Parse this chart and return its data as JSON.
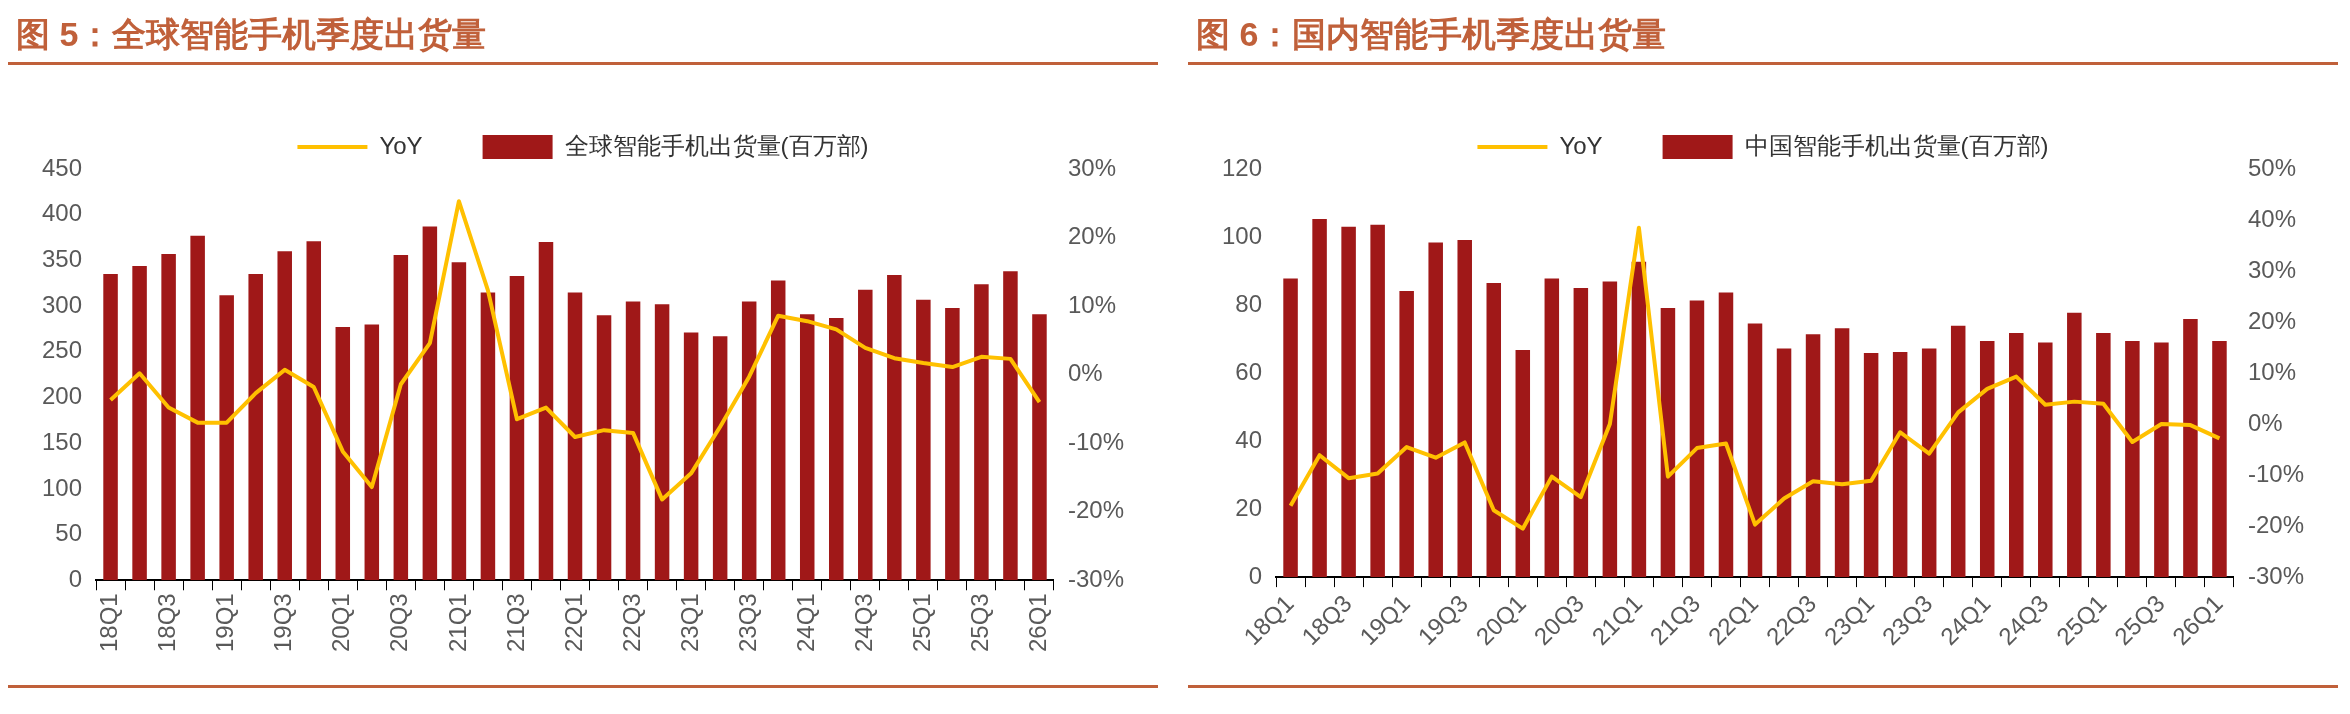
{
  "chart_data": [
    {
      "type": "bar",
      "title": "图 5：全球智能手机季度出货量",
      "categories": [
        "18Q1",
        null,
        "18Q3",
        null,
        "19Q1",
        null,
        "19Q3",
        null,
        "20Q1",
        null,
        "20Q3",
        null,
        "21Q1",
        null,
        "21Q3",
        null,
        "22Q1",
        null,
        "22Q3",
        null,
        "23Q1",
        null,
        "23Q3",
        null,
        "24Q1",
        null,
        "24Q3",
        null,
        "25Q1",
        null,
        "25Q3",
        null,
        "26Q1"
      ],
      "series": [
        {
          "name": "全球智能手机出货量(百万部)",
          "color": "#a01818",
          "values": [
            335,
            344,
            357,
            377,
            312,
            335,
            360,
            371,
            277,
            280,
            356,
            387,
            348,
            315,
            333,
            370,
            315,
            290,
            305,
            302,
            271,
            267,
            305,
            328,
            291,
            287,
            318,
            334,
            307,
            298,
            324,
            338,
            291
          ]
        },
        {
          "name": "YoY",
          "type": "line",
          "axis": "y2",
          "color": "#ffc000",
          "values": [
            -3.7,
            0.2,
            -4.8,
            -7.0,
            -7.0,
            -2.7,
            0.7,
            -1.8,
            -11.2,
            -16.4,
            -1.4,
            4.6,
            25.3,
            12.3,
            -6.5,
            -4.8,
            -9.1,
            -8.1,
            -8.5,
            -18.2,
            -14.4,
            -7.6,
            -0.3,
            8.6,
            7.8,
            6.6,
            3.9,
            2.4,
            1.7,
            1.1,
            2.6,
            2.3,
            -4.0
          ]
        }
      ],
      "ylim": [
        0,
        450
      ],
      "yticks": [
        0,
        50,
        100,
        150,
        200,
        250,
        300,
        350,
        400,
        450
      ],
      "y2lim": [
        -30,
        30
      ],
      "y2ticks": [
        {
          "value": -30,
          "label": "-30%"
        },
        {
          "value": -20,
          "label": "-20%"
        },
        {
          "value": -10,
          "label": "-10%"
        },
        {
          "value": 0,
          "label": "0%"
        },
        {
          "value": 10,
          "label": "10%"
        },
        {
          "value": 20,
          "label": "20%"
        },
        {
          "value": 30,
          "label": "30%"
        }
      ],
      "grid": false,
      "legend": "top"
    },
    {
      "type": "bar",
      "title": "图 6：国内智能手机季度出货量",
      "categories": [
        "18Q1",
        null,
        "18Q3",
        null,
        "19Q1",
        null,
        "19Q3",
        null,
        "20Q1",
        null,
        "20Q3",
        null,
        "21Q1",
        null,
        "21Q3",
        null,
        "22Q1",
        null,
        "22Q3",
        null,
        "23Q1",
        null,
        "23Q3",
        null,
        "24Q1",
        null,
        "24Q3",
        null,
        "25Q1",
        null,
        "25Q3",
        null,
        "26Q1"
      ],
      "series": [
        {
          "name": "中国智能手机出货量(百万部)",
          "color": "#a01818",
          "values": [
            87.8,
            105.3,
            103,
            103.6,
            84.1,
            98.4,
            99.1,
            86.5,
            66.8,
            87.8,
            85,
            86.9,
            92.7,
            79.1,
            81.3,
            83.7,
            74.6,
            67.2,
            71.4,
            73.2,
            65.9,
            66.2,
            67.2,
            73.9,
            69.4,
            71.8,
            69,
            77.7,
            71.8,
            69.4,
            69,
            75.9,
            69.4
          ]
        },
        {
          "name": "YoY",
          "type": "line",
          "axis": "y2",
          "color": "#ffc000",
          "values": [
            -16,
            -6.1,
            -10.6,
            -9.7,
            -4.5,
            -6.6,
            -3.6,
            -16.9,
            -20.5,
            -10.3,
            -14.3,
            0,
            38.5,
            -10.3,
            -4.7,
            -3.8,
            -19.7,
            -14.6,
            -11.2,
            -11.8,
            -11.1,
            -1.6,
            -5.8,
            2.3,
            6.9,
            9.3,
            3.8,
            4.4,
            4.0,
            -3.5,
            0,
            -0.2,
            -2.8
          ]
        }
      ],
      "ylim": [
        0,
        120
      ],
      "yticks": [
        0,
        20,
        40,
        60,
        80,
        100,
        120
      ],
      "y2lim": [
        -30,
        50
      ],
      "y2ticks": [
        {
          "value": -30,
          "label": "-30%"
        },
        {
          "value": -20,
          "label": "-20%"
        },
        {
          "value": -10,
          "label": "-10%"
        },
        {
          "value": 0,
          "label": "0%"
        },
        {
          "value": 10,
          "label": "10%"
        },
        {
          "value": 20,
          "label": "20%"
        },
        {
          "value": 30,
          "label": "30%"
        },
        {
          "value": 40,
          "label": "40%"
        },
        {
          "value": 50,
          "label": "50%"
        }
      ],
      "grid": false,
      "legend": "top"
    }
  ]
}
